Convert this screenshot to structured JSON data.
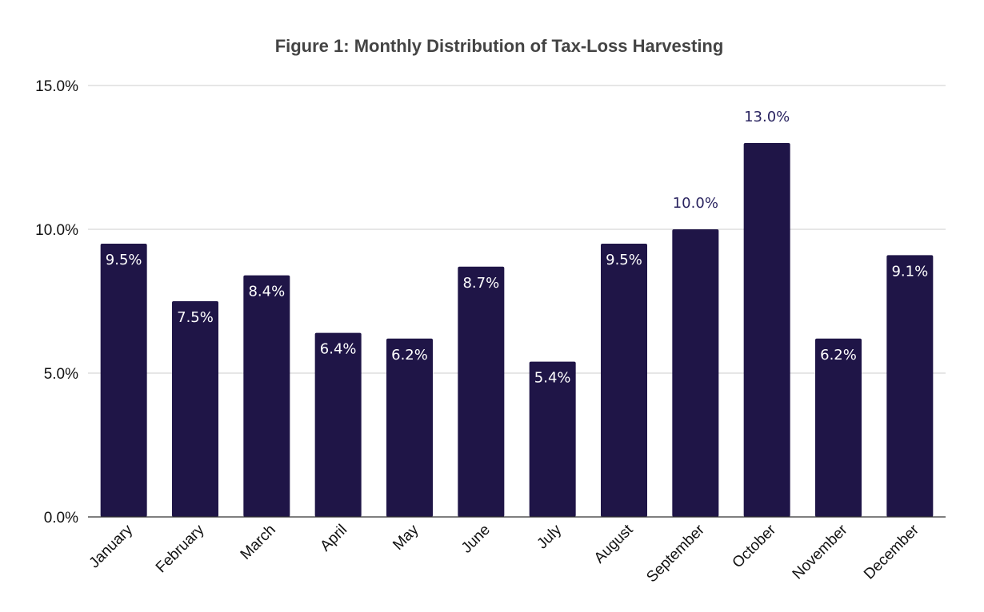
{
  "chart_data": {
    "type": "bar",
    "title": "Figure 1: Monthly Distribution of Tax-Loss Harvesting",
    "xlabel": "",
    "ylabel": "",
    "categories": [
      "January",
      "February",
      "March",
      "April",
      "May",
      "June",
      "July",
      "August",
      "September",
      "October",
      "November",
      "December"
    ],
    "values": [
      9.5,
      7.5,
      8.4,
      6.4,
      6.2,
      8.7,
      5.4,
      9.5,
      10.0,
      13.0,
      6.2,
      9.1
    ],
    "value_labels": [
      "9.5%",
      "7.5%",
      "8.4%",
      "6.4%",
      "6.2%",
      "8.7%",
      "5.4%",
      "9.5%",
      "10.0%",
      "13.0%",
      "6.2%",
      "9.1%"
    ],
    "ylim": [
      0,
      15
    ],
    "yticks": [
      0,
      5,
      10,
      15
    ],
    "ytick_labels": [
      "0.0%",
      "5.0%",
      "10.0%",
      "15.0%"
    ],
    "grid": true,
    "legend": "none",
    "bar_color": "#1f1547",
    "label_color_inside": "#ffffff",
    "label_color_outside": "#2a2460"
  }
}
